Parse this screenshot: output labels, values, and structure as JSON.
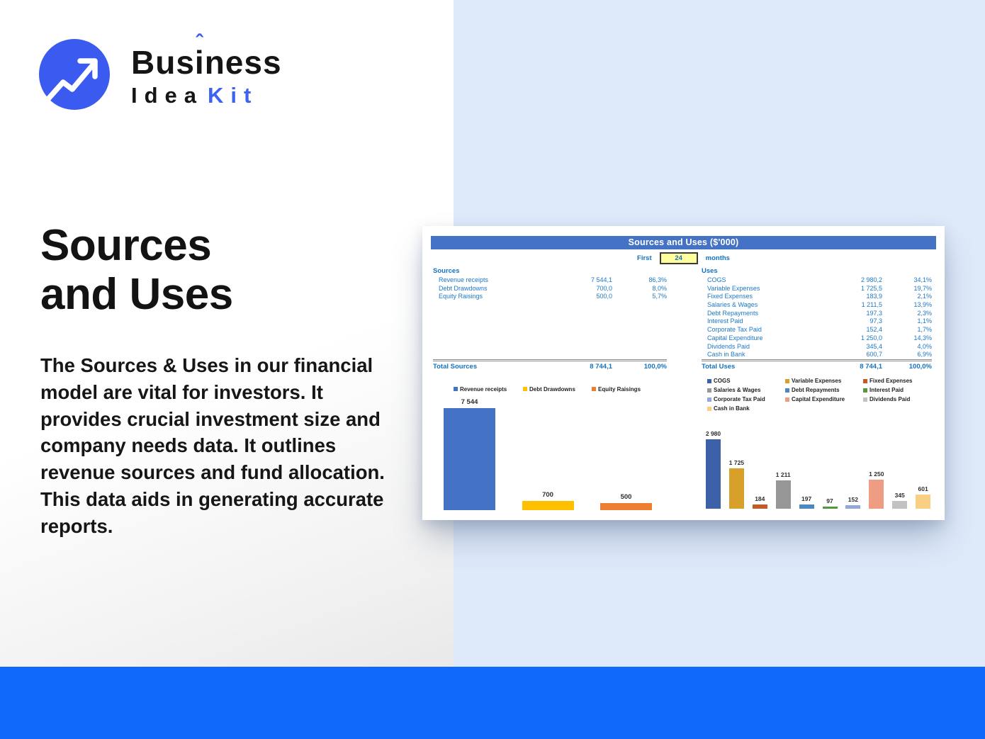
{
  "logo": {
    "brand_pre": "Bus",
    "brand_i": "i",
    "brand_hat": "ˆ",
    "brand_post": "ness",
    "brand_bottom_dark": "Idea",
    "brand_bottom_accent": "Kit"
  },
  "hero": {
    "title_line1": "Sources",
    "title_line2": "and Uses",
    "description": "The Sources & Uses in our financial model are vital for investors. It provides crucial investment size and company needs data. It outlines revenue sources and fund allocation. This data aids in generating accurate reports."
  },
  "sheet": {
    "title": "Sources and Uses ($'000)",
    "period": {
      "prefix": "First",
      "value": "24",
      "suffix": "months"
    },
    "sources": {
      "header": "Sources",
      "rows": [
        {
          "label": "Revenue receipts",
          "value": "7 544,1",
          "pct": "86,3%"
        },
        {
          "label": "Debt Drawdowns",
          "value": "700,0",
          "pct": "8,0%"
        },
        {
          "label": "Equity Raisings",
          "value": "500,0",
          "pct": "5,7%"
        }
      ],
      "total": {
        "label": "Total Sources",
        "value": "8 744,1",
        "pct": "100,0%"
      }
    },
    "uses": {
      "header": "Uses",
      "rows": [
        {
          "label": "COGS",
          "value": "2 980,2",
          "pct": "34,1%"
        },
        {
          "label": "Variable Expenses",
          "value": "1 725,5",
          "pct": "19,7%"
        },
        {
          "label": "Fixed Expenses",
          "value": "183,9",
          "pct": "2,1%"
        },
        {
          "label": "Salaries & Wages",
          "value": "1 211,5",
          "pct": "13,9%"
        },
        {
          "label": "Debt Repayments",
          "value": "197,3",
          "pct": "2,3%"
        },
        {
          "label": "Interest Paid",
          "value": "97,3",
          "pct": "1,1%"
        },
        {
          "label": "Corporate Tax Paid",
          "value": "152,4",
          "pct": "1,7%"
        },
        {
          "label": "Capital Expenditure",
          "value": "1 250,0",
          "pct": "14,3%"
        },
        {
          "label": "Dividends Paid",
          "value": "345,4",
          "pct": "4,0%"
        },
        {
          "label": "Cash in Bank",
          "value": "600,7",
          "pct": "6,9%"
        }
      ],
      "total": {
        "label": "Total Uses",
        "value": "8 744,1",
        "pct": "100,0%"
      }
    }
  },
  "chart_data": [
    {
      "type": "bar",
      "title": "Sources",
      "categories": [
        "Revenue receipts",
        "Debt Drawdowns",
        "Equity Raisings"
      ],
      "values": [
        7544,
        700,
        500
      ],
      "labels": [
        "7 544",
        "700",
        "500"
      ],
      "colors": [
        "#4472c4",
        "#ffc000",
        "#ed7d31"
      ],
      "xlabel": "",
      "ylabel": "",
      "ylim": [
        0,
        7544
      ],
      "grid": false,
      "legend_position": "top"
    },
    {
      "type": "bar",
      "title": "Uses",
      "categories": [
        "COGS",
        "Variable Expenses",
        "Fixed Expenses",
        "Salaries & Wages",
        "Debt Repayments",
        "Interest Paid",
        "Corporate Tax Paid",
        "Capital Expenditure",
        "Dividends Paid",
        "Cash in Bank"
      ],
      "values": [
        2980,
        1725,
        184,
        1211,
        197,
        97,
        152,
        1250,
        345,
        601
      ],
      "labels": [
        "2 980",
        "1 725",
        "184",
        "1 211",
        "197",
        "97",
        "152",
        "1 250",
        "345",
        "601"
      ],
      "colors": [
        "#3c61a8",
        "#d7a02a",
        "#c05a28",
        "#969696",
        "#4e86c0",
        "#55973c",
        "#93a7db",
        "#ee9c82",
        "#c2c2c2",
        "#f9cf84"
      ],
      "xlabel": "",
      "ylabel": "",
      "ylim": [
        0,
        2980
      ],
      "grid": false,
      "legend_position": "top"
    }
  ],
  "colors": {
    "accent_blue": "#3b5bf0",
    "kit_blue": "#3e63f2",
    "bottom_bar_blue": "#1169fb",
    "panel_blue": "#dee9fa",
    "sheet_header_blue": "#4472c4",
    "table_text_blue": "#1273c4",
    "period_box_yellow": "#ffff9e"
  }
}
